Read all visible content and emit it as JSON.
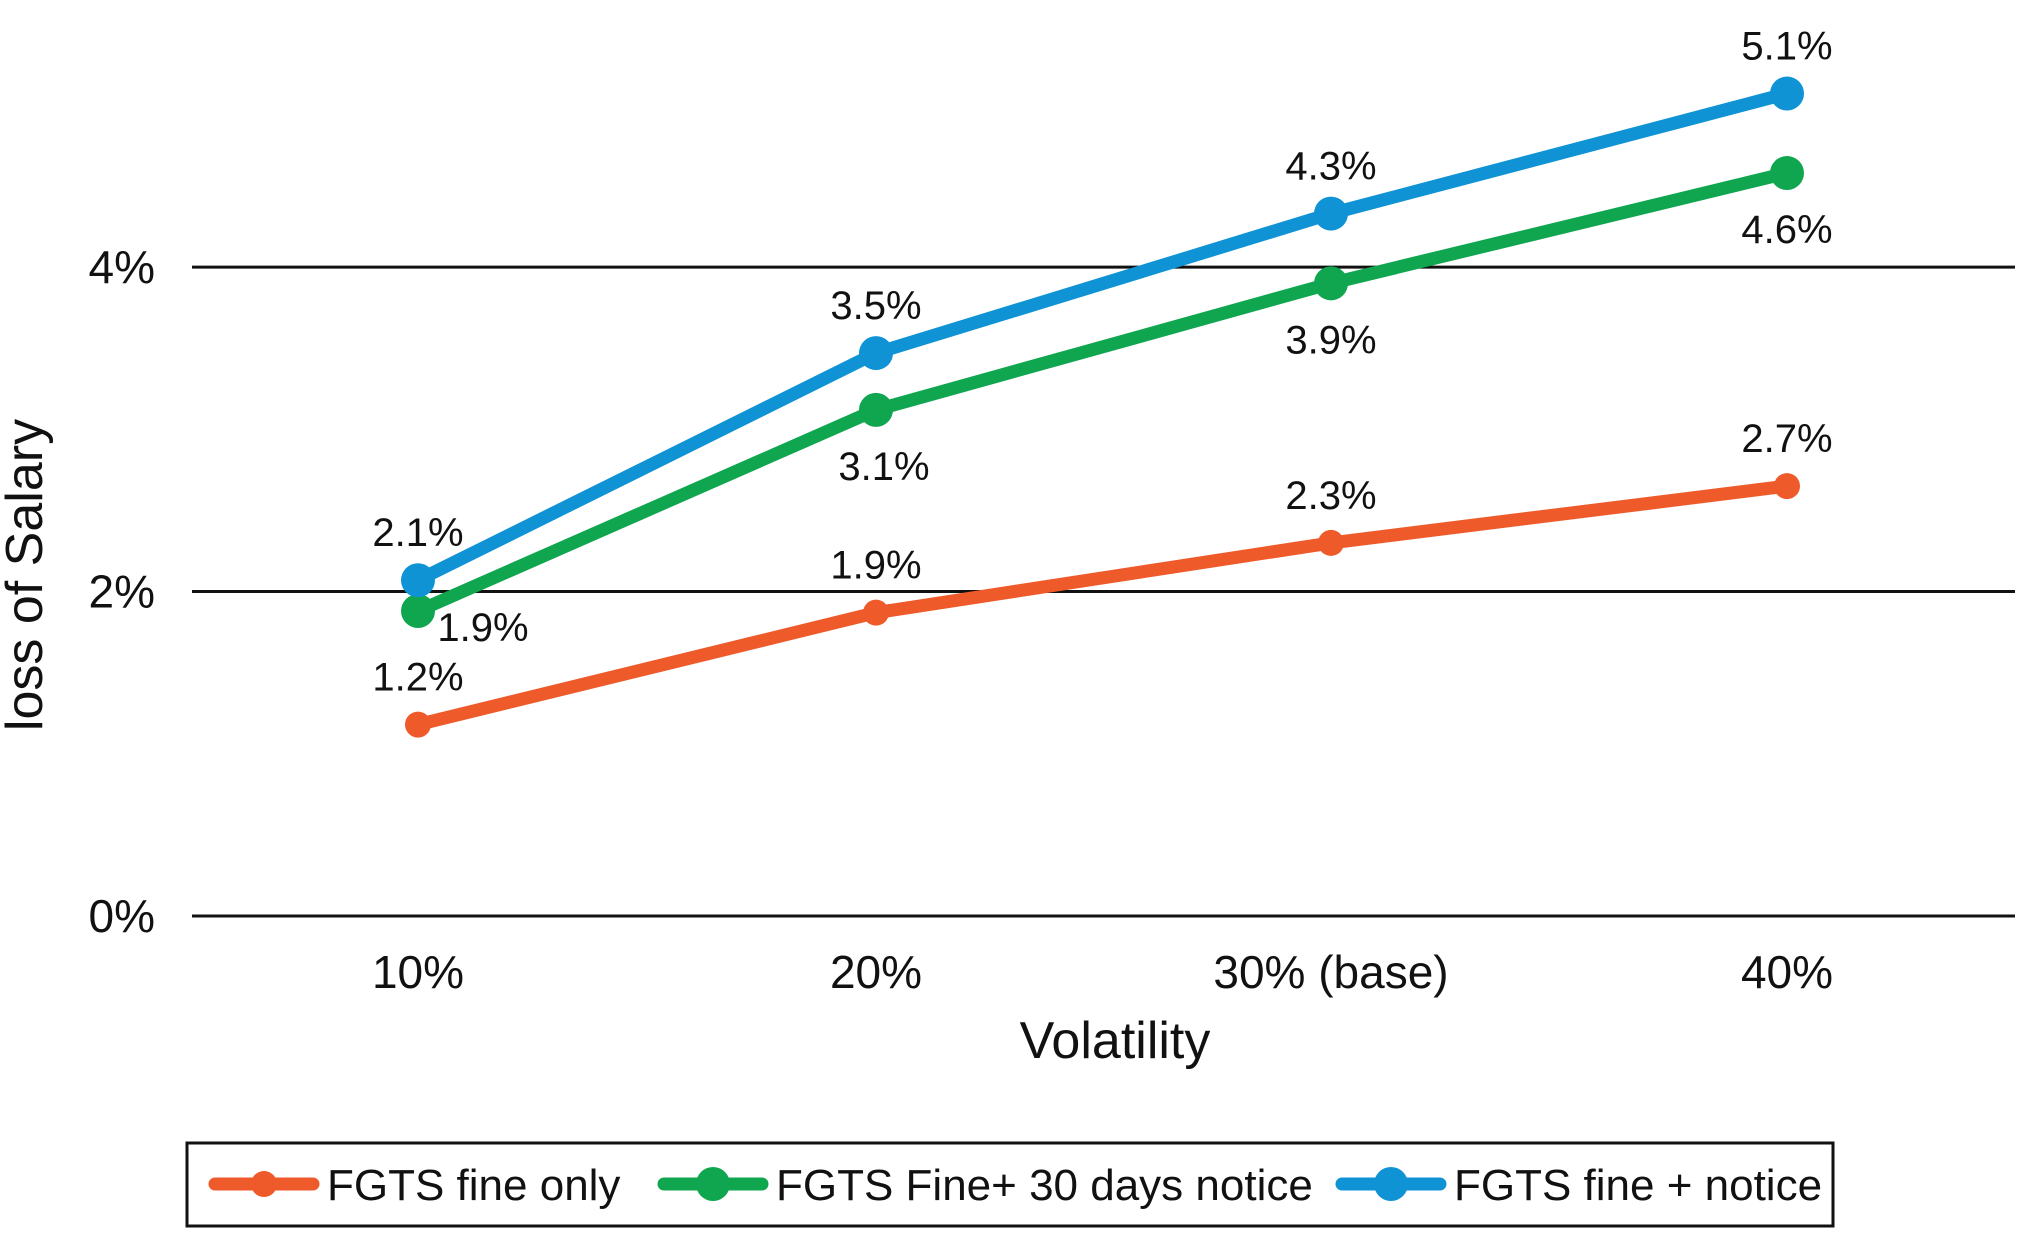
{
  "chart_data": {
    "type": "line",
    "title": "",
    "xlabel": "Volatility",
    "ylabel": "loss of Salary",
    "categories": [
      "10%",
      "20%",
      "30% (base)",
      "40%"
    ],
    "y_ticks": [
      "0%",
      "2%",
      "4%"
    ],
    "y_tick_values": [
      0,
      2,
      4
    ],
    "ylim": [
      0,
      5.4
    ],
    "grid": "horizontal",
    "legend_position": "bottom",
    "series": [
      {
        "name": "FGTS fine only",
        "color": "#ee5a2a",
        "values": [
          1.18,
          1.87,
          2.3,
          2.65
        ],
        "labels": [
          "1.2%",
          "1.9%",
          "2.3%",
          "2.7%"
        ],
        "label_position": "above"
      },
      {
        "name": "FGTS Fine+ 30 days notice",
        "color": "#10a650",
        "values": [
          1.88,
          3.12,
          3.9,
          4.58
        ],
        "labels": [
          "1.9%",
          "3.1%",
          "3.9%",
          "4.6%"
        ],
        "label_position": "below"
      },
      {
        "name": "FGTS fine + notice",
        "color": "#0f93d4",
        "values": [
          2.07,
          3.47,
          4.33,
          5.07
        ],
        "labels": [
          "2.1%",
          "3.5%",
          "4.3%",
          "5.1%"
        ],
        "label_position": "above"
      }
    ]
  }
}
